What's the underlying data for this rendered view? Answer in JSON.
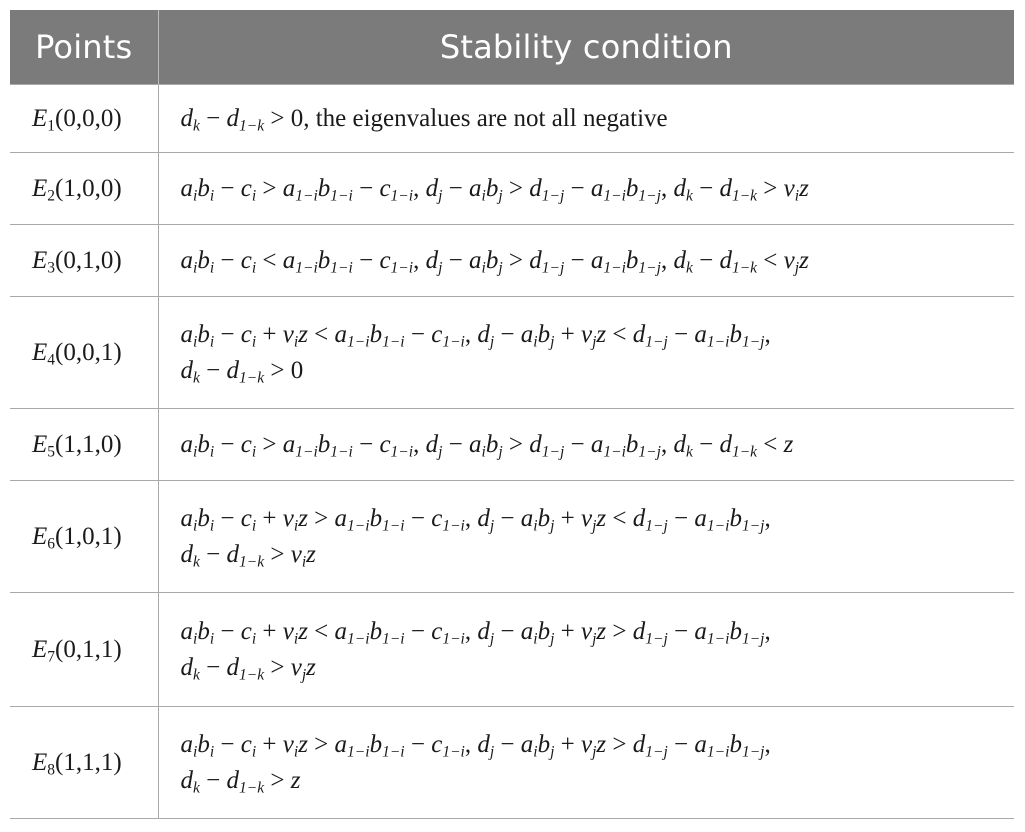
{
  "header": {
    "points": "Points",
    "condition": "Stability condition"
  },
  "rows": [
    {
      "p_letter": "E",
      "p_sub": "1",
      "p_coords": "(0,0,0)",
      "lines": [
        "PLAIN:dk − d1−k > 0, the eigenvalues are not all negative"
      ]
    },
    {
      "p_letter": "E",
      "p_sub": "2",
      "p_coords": "(1,0,0)",
      "lines": [
        "aibi − ci > a1−ib1−i − c1−i, dj − aibj > d1−j − a1−ib1−j, dk − d1−k > viz"
      ]
    },
    {
      "p_letter": "E",
      "p_sub": "3",
      "p_coords": "(0,1,0)",
      "lines": [
        "aibi − ci < a1−ib1−i − c1−i, dj − aibj > d1−j − a1−ib1−j, dk − d1−k < vjz"
      ]
    },
    {
      "p_letter": "E",
      "p_sub": "4",
      "p_coords": "(0,0,1)",
      "lines": [
        "aibi − ci + viz < a1−ib1−i − c1−i, dj − aibj + vjz < d1−j − a1−ib1−j,",
        "dk − d1−k > 0"
      ]
    },
    {
      "p_letter": "E",
      "p_sub": "5",
      "p_coords": "(1,1,0)",
      "lines": [
        "aibi − ci > a1−ib1−i − c1−i, dj − aibj > d1−j − a1−ib1−j, dk − d1−k < z"
      ]
    },
    {
      "p_letter": "E",
      "p_sub": "6",
      "p_coords": "(1,0,1)",
      "lines": [
        "aibi − ci + viz > a1−ib1−i − c1−i, dj − aibj + vjz < d1−j − a1−ib1−j,",
        "dk − d1−k > viz"
      ]
    },
    {
      "p_letter": "E",
      "p_sub": "7",
      "p_coords": "(0,1,1)",
      "lines": [
        "aibi − ci + viz < a1−ib1−i − c1−i, dj − aibj + vjz > d1−j − a1−ib1−j,",
        "dk − d1−k > vjz"
      ]
    },
    {
      "p_letter": "E",
      "p_sub": "8",
      "p_coords": "(1,1,1)",
      "lines": [
        "aibi − ci + viz > a1−ib1−i − c1−i, dj − aibj + vjz > d1−j − a1−ib1−j,",
        "dk − d1−k > z"
      ]
    }
  ],
  "colors": {
    "header_bg": "#7b7b7b",
    "header_text": "#ffffff",
    "rule": "#a9a9a9"
  }
}
